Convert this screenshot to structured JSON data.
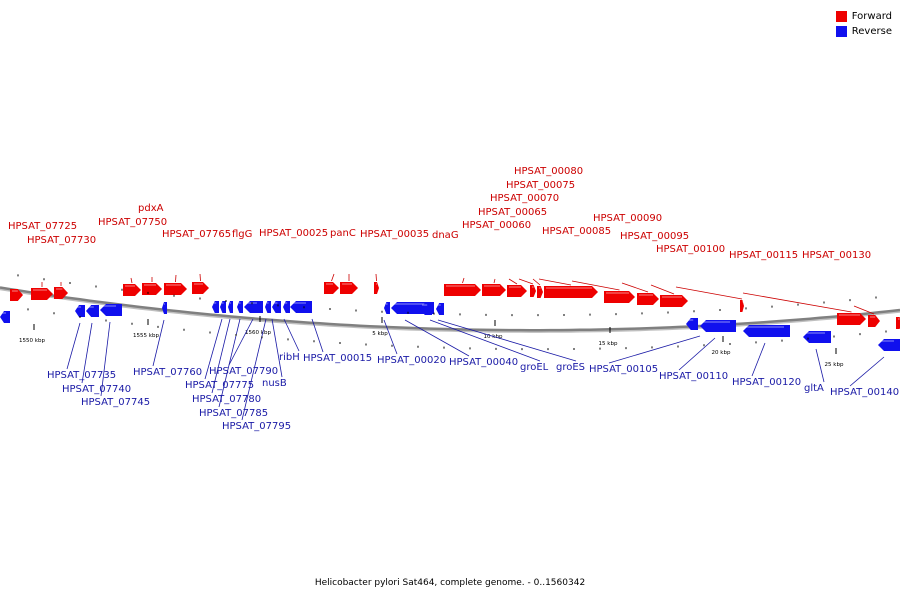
{
  "legend": [
    {
      "label": "Forward",
      "color": "#ee0000"
    },
    {
      "label": "Reverse",
      "color": "#1010ee"
    }
  ],
  "caption": "Helicobacter pylori Sat464, complete genome. - 0..1560342",
  "colors": {
    "forward": "#ee0000",
    "reverse": "#1010ee",
    "forward_label": "#cc0000",
    "reverse_label": "#1a1aa6",
    "backbone": "#808080"
  },
  "ruler": [
    "1550 kbp",
    "1555 kbp",
    "1560 kbp",
    "5 kbp",
    "10 kbp",
    "15 kbp",
    "20 kbp",
    "25 kbp"
  ],
  "forward_genes": [
    "",
    "HPSAT_07725",
    "HPSAT_07730",
    "HPSAT_07750",
    "pdxA",
    "HPSAT_07765",
    "flgG",
    "HPSAT_00025",
    "panC",
    "HPSAT_00035",
    "dnaG",
    "HPSAT_00060",
    "HPSAT_00065",
    "HPSAT_00070",
    "HPSAT_00075",
    "HPSAT_00080",
    "HPSAT_00085",
    "HPSAT_00090",
    "HPSAT_00095",
    "HPSAT_00100",
    "HPSAT_00115",
    "HPSAT_00130",
    ""
  ],
  "reverse_genes": [
    "",
    "HPSAT_07735",
    "HPSAT_07740",
    "HPSAT_07745",
    "HPSAT_07760",
    "",
    "HPSAT_07775",
    "HPSAT_07780",
    "HPSAT_07785",
    "HPSAT_07790",
    "HPSAT_07795",
    "nusB",
    "ribH",
    "HPSAT_00015",
    "HPSAT_00020",
    "HPSAT_00040",
    "groEL",
    "groES",
    "HPSAT_00105",
    "HPSAT_00110",
    "HPSAT_00120",
    "gltA",
    "HPSAT_00140"
  ]
}
